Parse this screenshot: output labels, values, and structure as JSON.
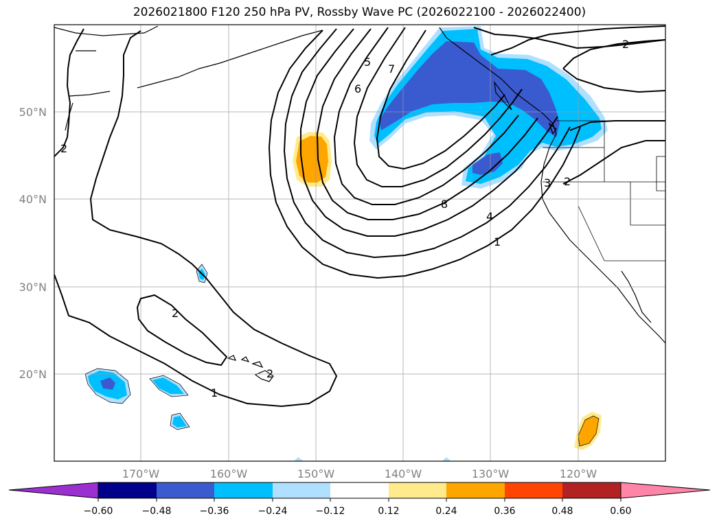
{
  "title": "2026021800 F120 250 hPa PV, Rossby Wave PC (2026022100 - 2026022400)",
  "map": {
    "projection": "PlateCarree",
    "extent_lon": [
      -180,
      -110
    ],
    "extent_lat": [
      10,
      60
    ],
    "lat_labels": [
      "50°N",
      "40°N",
      "30°N",
      "20°N"
    ],
    "lon_labels": [
      "170°W",
      "160°W",
      "150°W",
      "140°W",
      "130°W",
      "120°W"
    ],
    "gridlines": true
  },
  "colorbar": {
    "tick_labels": [
      "−0.60",
      "−0.48",
      "−0.36",
      "−0.24",
      "−0.12",
      "0.12",
      "0.24",
      "0.36",
      "0.48",
      "0.60"
    ],
    "colors": [
      "#9b30d0",
      "#00008b",
      "#3a5bcf",
      "#00bfff",
      "#b0e0ff",
      "#ffffff",
      "#ffeb8c",
      "#ffa500",
      "#ff4500",
      "#b22222",
      "#ff85a8"
    ]
  },
  "contour_labels": [
    "2",
    "5",
    "7",
    "6",
    "2",
    "8",
    "4",
    "1",
    "3",
    "2",
    "2",
    "2",
    "1"
  ],
  "fill_colors": {
    "neg_strong": "#3a5bcf",
    "neg_mid": "#00bfff",
    "neg_weak": "#b0e0ff",
    "pos_weak": "#ffeb8c",
    "pos_mid": "#ffa500"
  }
}
